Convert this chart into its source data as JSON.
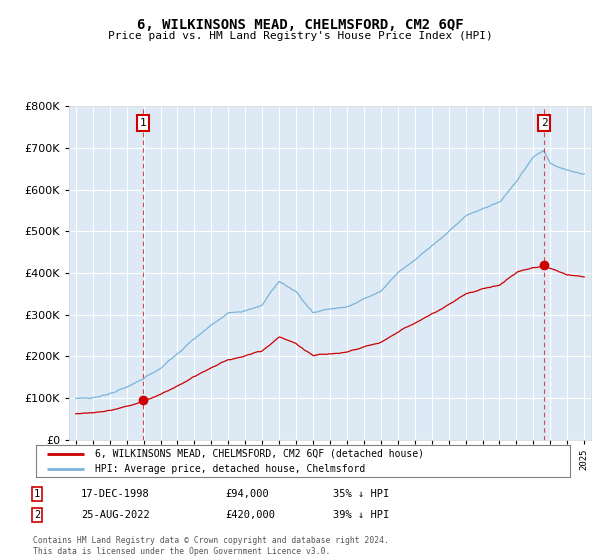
{
  "title": "6, WILKINSONS MEAD, CHELMSFORD, CM2 6QF",
  "subtitle": "Price paid vs. HM Land Registry's House Price Index (HPI)",
  "sale1_date": "17-DEC-1998",
  "sale1_price": 94000,
  "sale1_label": "35% ↓ HPI",
  "sale2_date": "25-AUG-2022",
  "sale2_price": 420000,
  "sale2_label": "39% ↓ HPI",
  "legend_line1": "6, WILKINSONS MEAD, CHELMSFORD, CM2 6QF (detached house)",
  "legend_line2": "HPI: Average price, detached house, Chelmsford",
  "footer": "Contains HM Land Registry data © Crown copyright and database right 2024.\nThis data is licensed under the Open Government Licence v3.0.",
  "hpi_color": "#7ab4d8",
  "price_color": "#cc0000",
  "bg_color": "#ddeaf5",
  "ylim": [
    0,
    800000
  ],
  "yticks": [
    0,
    100000,
    200000,
    300000,
    400000,
    500000,
    600000,
    700000,
    800000
  ],
  "sale1_x": 1998.96,
  "sale2_x": 2022.63
}
